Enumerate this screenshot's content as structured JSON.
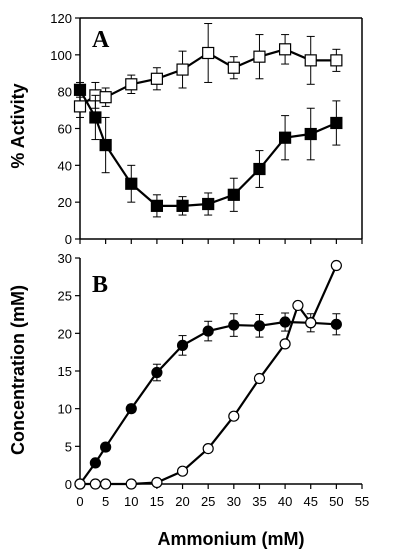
{
  "chart_data": [
    {
      "type": "line",
      "panel_label": "A",
      "ylabel": "% Activity",
      "xlabel": "",
      "xlim": [
        0,
        55
      ],
      "ylim": [
        0,
        120
      ],
      "x_ticks": [
        0,
        5,
        10,
        15,
        20,
        25,
        30,
        35,
        40,
        45,
        50,
        55
      ],
      "y_ticks": [
        0,
        20,
        40,
        60,
        80,
        100,
        120
      ],
      "x_tick_labels_shown": false,
      "grid": false,
      "series": [
        {
          "marker": "square-open",
          "x": [
            0,
            3,
            5,
            10,
            15,
            20,
            25,
            30,
            35,
            40,
            45,
            50
          ],
          "y": [
            72,
            78,
            77,
            84,
            87,
            92,
            101,
            93,
            99,
            103,
            97,
            97
          ],
          "error": [
            6,
            7,
            5,
            5,
            6,
            10,
            16,
            6,
            12,
            8,
            13,
            6
          ]
        },
        {
          "marker": "square-filled",
          "x": [
            0,
            3,
            5,
            10,
            15,
            20,
            25,
            30,
            35,
            40,
            45,
            50
          ],
          "y": [
            81,
            66,
            51,
            30,
            18,
            18,
            19,
            24,
            38,
            55,
            57,
            63
          ],
          "error": [
            4,
            12,
            15,
            10,
            6,
            5,
            6,
            9,
            10,
            12,
            14,
            12
          ]
        }
      ]
    },
    {
      "type": "line",
      "panel_label": "B",
      "ylabel": "Concentration (mM)",
      "xlabel": "Ammonium (mM)",
      "xlim": [
        0,
        55
      ],
      "ylim": [
        0,
        30
      ],
      "x_ticks": [
        0,
        5,
        10,
        15,
        20,
        25,
        30,
        35,
        40,
        45,
        50,
        55
      ],
      "y_ticks": [
        0,
        5,
        10,
        15,
        20,
        25,
        30
      ],
      "grid": false,
      "series": [
        {
          "marker": "circle-filled",
          "x": [
            0,
            3,
            5,
            10,
            15,
            20,
            25,
            30,
            35,
            40,
            45,
            50
          ],
          "y": [
            0,
            2.8,
            4.9,
            10,
            14.8,
            18.4,
            20.3,
            21.1,
            21.0,
            21.5,
            21.4,
            21.2
          ],
          "error": [
            0,
            0.4,
            0.5,
            0.5,
            1.1,
            1.3,
            1.3,
            1.5,
            1.5,
            1.2,
            1.2,
            1.4
          ]
        },
        {
          "marker": "circle-open",
          "x": [
            0,
            3,
            5,
            10,
            15,
            20,
            25,
            30,
            35,
            40,
            42.5,
            45,
            50
          ],
          "y": [
            0,
            0,
            0,
            0,
            0.2,
            1.7,
            4.7,
            9,
            14,
            18.6,
            23.7,
            21.4,
            29
          ],
          "error": []
        }
      ]
    }
  ]
}
